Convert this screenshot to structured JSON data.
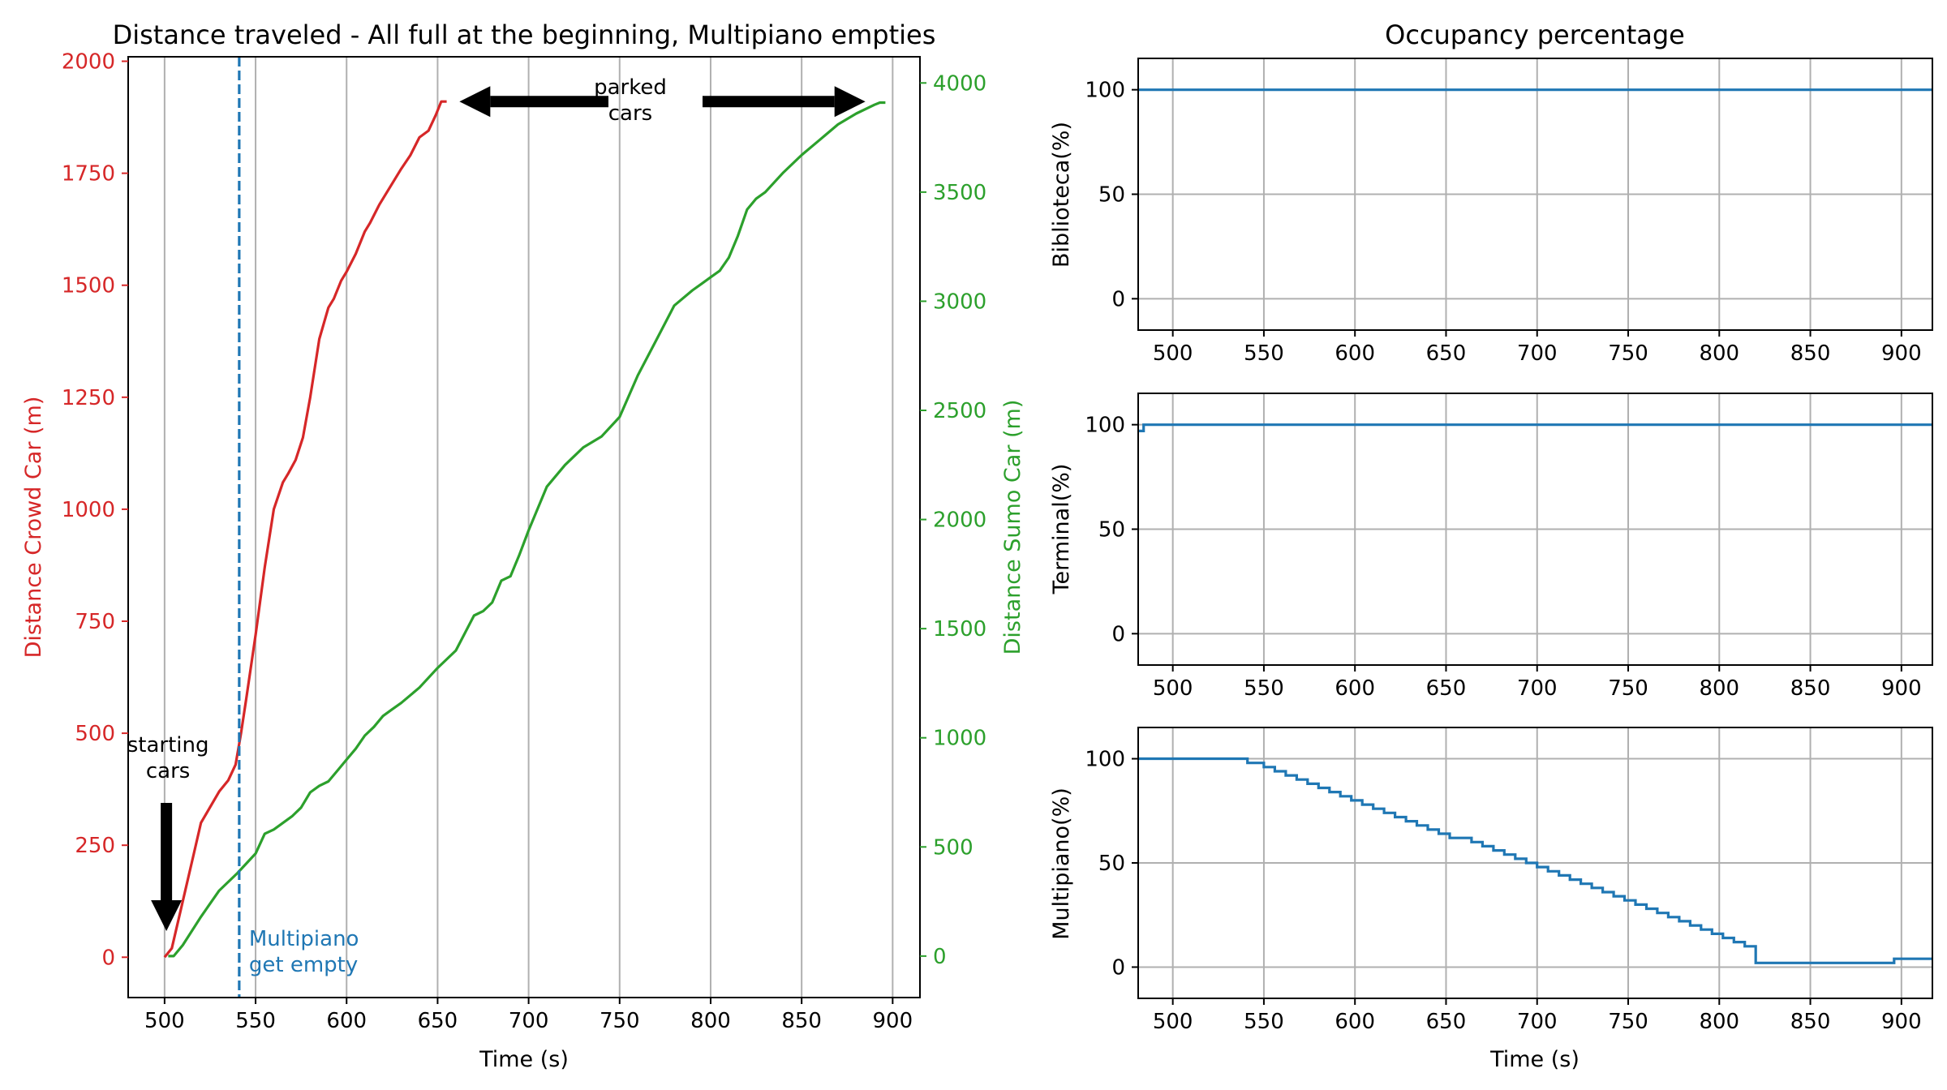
{
  "chart_data": [
    {
      "type": "line",
      "title": "Distance traveled - All full at the beginning, Multipiano empties",
      "xlabel": "Time (s)",
      "ylabel_left": "Distance Crowd Car (m)",
      "ylabel_right": "Distance Sumo Car (m)",
      "xlim": [
        480,
        915
      ],
      "ylim_left": [
        -90,
        2010
      ],
      "ylim_right": [
        -190,
        4120
      ],
      "xticks": [
        500,
        550,
        600,
        650,
        700,
        750,
        800,
        850,
        900
      ],
      "yticks_left": [
        0,
        250,
        500,
        750,
        1000,
        1250,
        1500,
        1750,
        2000
      ],
      "yticks_right": [
        0,
        500,
        1000,
        1500,
        2000,
        2500,
        3000,
        3500,
        4000
      ],
      "grid": "x",
      "series": [
        {
          "name": "Distance Crowd Car (m)",
          "axis": "left",
          "color": "#d62728",
          "x": [
            500,
            504,
            508,
            512,
            516,
            520,
            525,
            530,
            535,
            539,
            542,
            545,
            550,
            555,
            560,
            565,
            568,
            572,
            576,
            580,
            585,
            590,
            593,
            597,
            600,
            605,
            610,
            613,
            618,
            624,
            630,
            635,
            640,
            645,
            649,
            652,
            655
          ],
          "y": [
            0,
            20,
            90,
            160,
            230,
            300,
            335,
            370,
            395,
            430,
            500,
            580,
            720,
            870,
            1000,
            1060,
            1080,
            1110,
            1160,
            1250,
            1380,
            1450,
            1470,
            1510,
            1530,
            1570,
            1620,
            1640,
            1680,
            1720,
            1760,
            1790,
            1830,
            1845,
            1880,
            1910,
            1910
          ]
        },
        {
          "name": "Distance Sumo Car (m)",
          "axis": "right",
          "color": "#2ca02c",
          "x": [
            502,
            505,
            510,
            520,
            530,
            540,
            550,
            555,
            560,
            565,
            570,
            575,
            580,
            585,
            590,
            595,
            600,
            605,
            610,
            615,
            620,
            625,
            630,
            640,
            650,
            660,
            670,
            675,
            680,
            685,
            690,
            695,
            700,
            710,
            720,
            730,
            740,
            750,
            760,
            770,
            780,
            790,
            795,
            800,
            805,
            810,
            815,
            820,
            825,
            830,
            840,
            850,
            860,
            870,
            880,
            890,
            893,
            896
          ],
          "y": [
            0,
            0,
            50,
            180,
            300,
            380,
            470,
            560,
            580,
            610,
            640,
            680,
            750,
            780,
            800,
            850,
            900,
            950,
            1010,
            1050,
            1100,
            1130,
            1160,
            1230,
            1320,
            1400,
            1560,
            1580,
            1620,
            1720,
            1740,
            1840,
            1950,
            2150,
            2250,
            2330,
            2380,
            2470,
            2660,
            2820,
            2980,
            3050,
            3080,
            3110,
            3140,
            3200,
            3300,
            3420,
            3470,
            3500,
            3590,
            3670,
            3740,
            3810,
            3860,
            3900,
            3910,
            3910
          ]
        }
      ],
      "vline": {
        "x": 541,
        "style": "dashed",
        "color": "#1f77b4"
      },
      "annotations": [
        {
          "text": "starting\ncars",
          "x": 501,
          "y_left": 550,
          "arrow": "down",
          "arrow_to_y_left": 50
        },
        {
          "text": "parked\ncars",
          "x": 755,
          "y_left": 1910,
          "arrow": "left-right",
          "arrow_to_x": [
            662,
            885
          ]
        },
        {
          "text": "Multipiano\nget empty",
          "x": 545,
          "y_left": -10,
          "color": "#1f77b4"
        }
      ]
    },
    {
      "type": "line",
      "title": "Occupancy percentage",
      "ylabel": "Biblioteca(%)",
      "xlim": [
        481,
        917
      ],
      "ylim": [
        -15,
        115
      ],
      "xticks": [
        500,
        550,
        600,
        650,
        700,
        750,
        800,
        850,
        900
      ],
      "yticks": [
        0,
        50,
        100
      ],
      "grid": true,
      "series": [
        {
          "color": "#1f77b4",
          "step": true,
          "x": [
            481,
            917
          ],
          "y": [
            100,
            100
          ]
        }
      ]
    },
    {
      "type": "line",
      "ylabel": "Terminal(%)",
      "xlim": [
        481,
        917
      ],
      "ylim": [
        -15,
        115
      ],
      "xticks": [
        500,
        550,
        600,
        650,
        700,
        750,
        800,
        850,
        900
      ],
      "yticks": [
        0,
        50,
        100
      ],
      "grid": true,
      "series": [
        {
          "color": "#1f77b4",
          "step": true,
          "x": [
            481,
            484,
            917
          ],
          "y": [
            97,
            100,
            100
          ]
        }
      ]
    },
    {
      "type": "line",
      "xlabel": "Time (s)",
      "ylabel": "Multipiano(%)",
      "xlim": [
        481,
        917
      ],
      "ylim": [
        -15,
        115
      ],
      "xticks": [
        500,
        550,
        600,
        650,
        700,
        750,
        800,
        850,
        900
      ],
      "yticks": [
        0,
        50,
        100
      ],
      "grid": true,
      "series": [
        {
          "color": "#1f77b4",
          "step": true,
          "x": [
            481,
            541,
            550,
            556,
            562,
            568,
            574,
            580,
            586,
            592,
            598,
            604,
            610,
            616,
            622,
            628,
            634,
            640,
            646,
            652,
            664,
            670,
            676,
            682,
            688,
            694,
            700,
            706,
            712,
            718,
            724,
            730,
            736,
            742,
            748,
            754,
            760,
            766,
            772,
            778,
            784,
            790,
            796,
            802,
            808,
            814,
            820,
            896,
            917
          ],
          "y": [
            100,
            98,
            96,
            94,
            92,
            90,
            88,
            86,
            84,
            82,
            80,
            78,
            76,
            74,
            72,
            70,
            68,
            66,
            64,
            62,
            60,
            58,
            56,
            54,
            52,
            50,
            48,
            46,
            44,
            42,
            40,
            38,
            36,
            34,
            32,
            30,
            28,
            26,
            24,
            22,
            20,
            18,
            16,
            14,
            12,
            10,
            2,
            4,
            4
          ]
        }
      ]
    }
  ]
}
